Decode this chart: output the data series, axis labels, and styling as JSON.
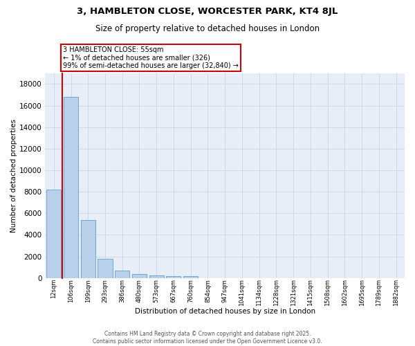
{
  "title": "3, HAMBLETON CLOSE, WORCESTER PARK, KT4 8JL",
  "subtitle": "Size of property relative to detached houses in London",
  "xlabel": "Distribution of detached houses by size in London",
  "ylabel": "Number of detached properties",
  "bar_color": "#b8d0ea",
  "bar_edge_color": "#6aaad4",
  "grid_color": "#c8d4e8",
  "background_color": "#e8eef8",
  "categories": [
    "12sqm",
    "106sqm",
    "199sqm",
    "293sqm",
    "386sqm",
    "480sqm",
    "573sqm",
    "667sqm",
    "760sqm",
    "854sqm",
    "947sqm",
    "1041sqm",
    "1134sqm",
    "1228sqm",
    "1321sqm",
    "1415sqm",
    "1508sqm",
    "1602sqm",
    "1695sqm",
    "1789sqm",
    "1882sqm"
  ],
  "values": [
    8200,
    16800,
    5400,
    1800,
    700,
    350,
    250,
    200,
    200,
    0,
    0,
    0,
    0,
    0,
    0,
    0,
    0,
    0,
    0,
    0,
    0
  ],
  "annotation_title": "3 HAMBLETON CLOSE: 55sqm",
  "annotation_line1": "← 1% of detached houses are smaller (326)",
  "annotation_line2": "99% of semi-detached houses are larger (32,840) →",
  "annotation_box_color": "#ffffff",
  "annotation_border_color": "#cc0000",
  "red_line_color": "#cc0000",
  "footer_line1": "Contains HM Land Registry data © Crown copyright and database right 2025.",
  "footer_line2": "Contains public sector information licensed under the Open Government Licence v3.0.",
  "ylim": [
    0,
    19000
  ],
  "yticks": [
    0,
    2000,
    4000,
    6000,
    8000,
    10000,
    12000,
    14000,
    16000,
    18000
  ]
}
